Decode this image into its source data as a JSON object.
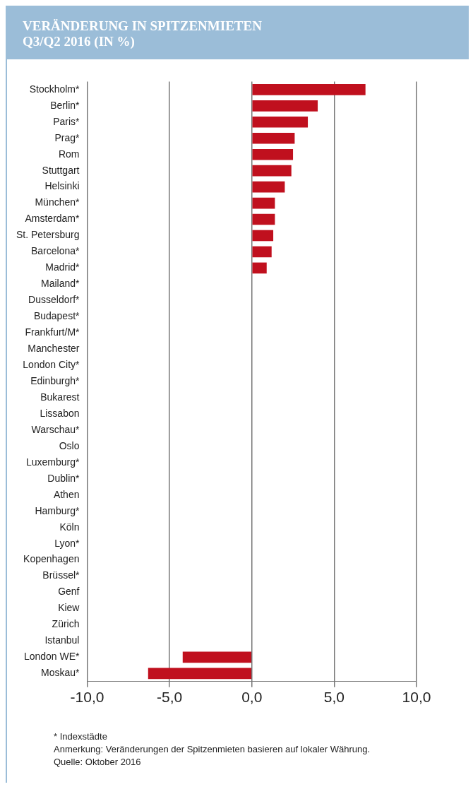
{
  "chart_data": {
    "type": "bar",
    "orientation": "horizontal",
    "title": "VERÄNDERUNG IN SPITZENMIETEN",
    "subtitle": "Q3/Q2 2016 (IN %)",
    "categories": [
      "Stockholm*",
      "Berlin*",
      "Paris*",
      "Prag*",
      "Rom",
      "Stuttgart",
      "Helsinki",
      "München*",
      "Amsterdam*",
      "St. Petersburg",
      "Barcelona*",
      "Madrid*",
      "Mailand*",
      "Dusseldorf*",
      "Budapest*",
      "Frankfurt/M*",
      "Manchester",
      "London City*",
      "Edinburgh*",
      "Bukarest",
      "Lissabon",
      "Warschau*",
      "Oslo",
      "Luxemburg*",
      "Dublin*",
      "Athen",
      "Hamburg*",
      "Köln",
      "Lyon*",
      "Kopenhagen",
      "Brüssel*",
      "Genf",
      "Kiew",
      "Zürich",
      "Istanbul",
      "London WE*",
      "Moskau*"
    ],
    "values": [
      6.9,
      4.0,
      3.4,
      2.6,
      2.5,
      2.4,
      2.0,
      1.4,
      1.4,
      1.3,
      1.2,
      0.9,
      0,
      0,
      0,
      0,
      0,
      0,
      0,
      0,
      0,
      0,
      0,
      0,
      0,
      0,
      0,
      0,
      0,
      0,
      0,
      0,
      0,
      0,
      0,
      -4.2,
      -6.3
    ],
    "color": "#c0101e",
    "xlim": [
      -10,
      10
    ],
    "xticks": [
      {
        "value": -10,
        "label": "-10,0"
      },
      {
        "value": -5,
        "label": "-5,0"
      },
      {
        "value": 0,
        "label": "0,0"
      },
      {
        "value": 5,
        "label": "5,0"
      },
      {
        "value": 10,
        "label": "10,0"
      }
    ],
    "grid": "x",
    "legend": false,
    "annotations": [
      "* Indexstädte",
      "Anmerkung: Veränderungen der Spitzenmieten basieren auf lokaler Währung.",
      "Quelle: Oktober 2016"
    ]
  }
}
